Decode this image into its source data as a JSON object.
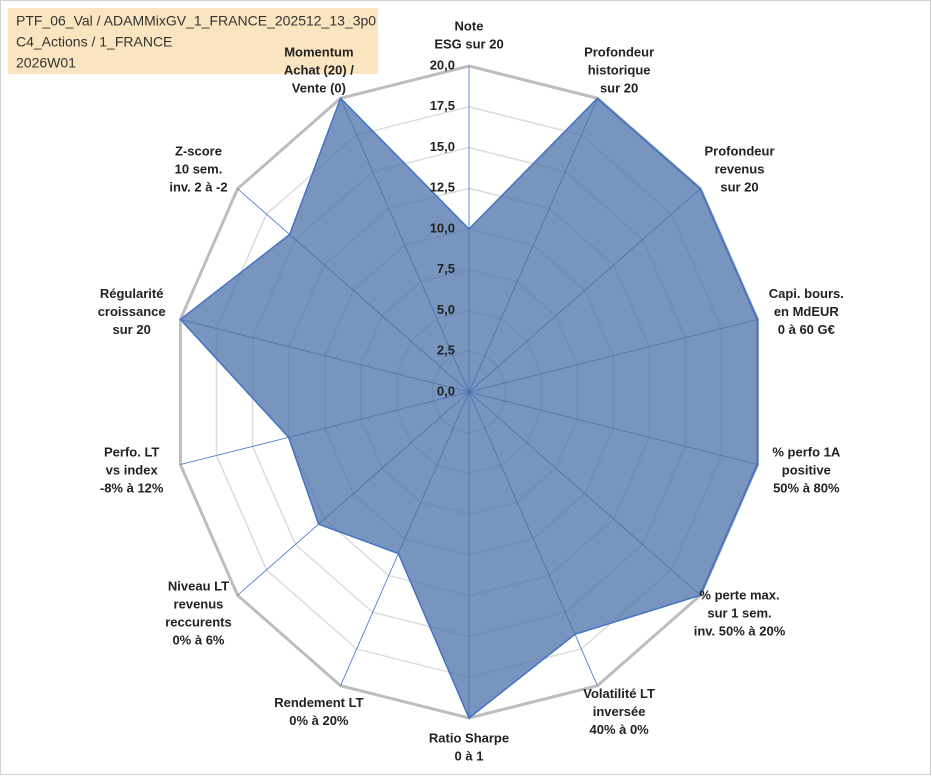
{
  "chart_data": {
    "type": "radar",
    "title": [
      "PTF_06_Val / ADAMMixGV_1_FRANCE_202512_13_3p0",
      "C4_Actions / 1_FRANCE",
      "2026W01"
    ],
    "categories": [
      [
        "Note",
        "ESG sur 20"
      ],
      [
        "Profondeur",
        "historique",
        "sur 20"
      ],
      [
        "Profondeur",
        "revenus",
        "sur 20"
      ],
      [
        "Capi. bours.",
        "en MdEUR",
        "0 à 60 G€"
      ],
      [
        "% perfo 1A",
        "positive",
        "50% à 80%"
      ],
      [
        "% perte max.",
        "sur 1 sem.",
        "inv. 50% à 20%"
      ],
      [
        "Volatilité LT",
        "inversée",
        "40% à 0%"
      ],
      [
        "Ratio Sharpe",
        "0 à 1"
      ],
      [
        "Rendement LT",
        "0% à 20%"
      ],
      [
        "Niveau LT",
        "revenus",
        "reccurents",
        "0% à 6%"
      ],
      [
        "Perfo. LT",
        "vs index",
        "-8% à 12%"
      ],
      [
        "Régularité",
        "croissance",
        "sur 20"
      ],
      [
        "Z-score",
        "10 sem.",
        "inv. 2 à -2"
      ],
      [
        "Momentum",
        "Achat (20) /",
        "Vente (0)"
      ]
    ],
    "series": [
      {
        "color": "#4a72a8",
        "values": [
          10,
          20,
          20,
          20,
          20,
          20,
          16.5,
          20,
          11,
          13,
          12.5,
          20,
          15.5,
          20
        ]
      }
    ],
    "ylim": [
      0,
      20
    ],
    "yticks": [
      {
        "value": 0,
        "label": "0,0"
      },
      {
        "value": 2.5,
        "label": "2,5"
      },
      {
        "value": 5,
        "label": "5,0"
      },
      {
        "value": 7.5,
        "label": "7,5"
      },
      {
        "value": 10,
        "label": "10,0"
      },
      {
        "value": 12.5,
        "label": "12,5"
      },
      {
        "value": 15,
        "label": "15,0"
      },
      {
        "value": 17.5,
        "label": "17,5"
      },
      {
        "value": 20,
        "label": "20,0"
      }
    ],
    "grid": true
  }
}
